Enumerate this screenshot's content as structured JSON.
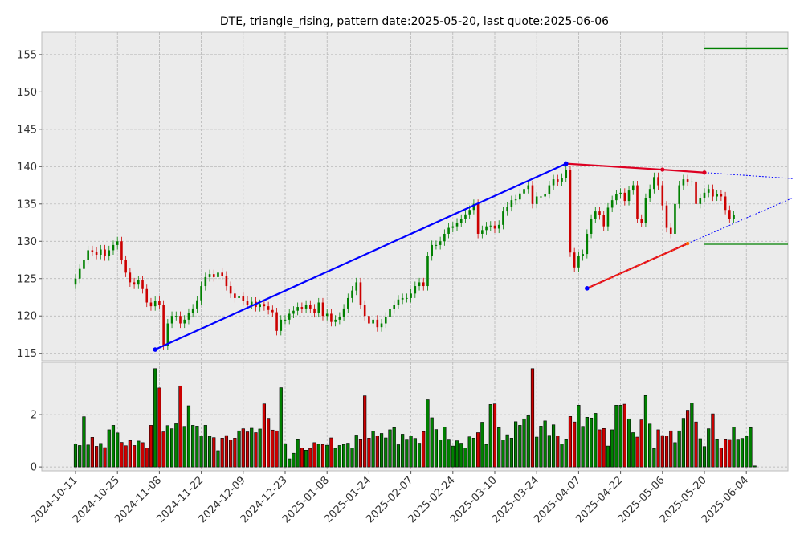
{
  "chart_data": {
    "title": "DTE, triangle_rising, pattern date:2025-05-20, last quote:2025-06-06",
    "type": "candlestick",
    "colors": {
      "up": "#008000",
      "down": "#cc0000",
      "panel_bg": "#ebebeb",
      "grid": "#b0b0b0",
      "upper_trend": "#dd0022",
      "lower_trend": "#ff6600",
      "swing_line": "#0000ff",
      "target_line": "#008000"
    },
    "price_axis": {
      "ylim": [
        114,
        158
      ],
      "ticks": [
        115,
        120,
        125,
        130,
        135,
        140,
        145,
        150,
        155
      ]
    },
    "volume_axis": {
      "ylim": [
        -0.15,
        4.0
      ],
      "ticks": [
        0,
        2
      ]
    },
    "x_tick_labels": [
      "2024-10-11",
      "2024-10-25",
      "2024-11-08",
      "2024-11-22",
      "2024-12-09",
      "2024-12-23",
      "2025-01-08",
      "2025-01-24",
      "2025-02-07",
      "2025-02-24",
      "2025-03-10",
      "2025-03-24",
      "2025-04-07",
      "2025-04-22",
      "2025-05-06",
      "2025-05-20",
      "2025-06-04"
    ],
    "x_tick_index": [
      0,
      10,
      20,
      30,
      40,
      50,
      60,
      70,
      80,
      90,
      100,
      110,
      120,
      130,
      140,
      150,
      160
    ],
    "n_days": 171,
    "closes": [
      125.0,
      126.3,
      127.5,
      128.8,
      128.6,
      128.2,
      128.9,
      128.0,
      128.8,
      129.5,
      130.0,
      127.5,
      125.8,
      124.5,
      124.2,
      124.8,
      123.6,
      121.8,
      121.3,
      122.0,
      121.5,
      116.0,
      119.0,
      120.0,
      120.0,
      119.0,
      119.5,
      120.4,
      121.0,
      122.1,
      124.0,
      125.2,
      125.6,
      125.2,
      125.8,
      125.4,
      124.0,
      123.0,
      122.4,
      122.6,
      122.0,
      121.5,
      121.9,
      121.2,
      121.6,
      121.3,
      120.8,
      120.5,
      118.0,
      119.5,
      119.5,
      120.3,
      120.7,
      121.2,
      121.0,
      121.5,
      121.0,
      120.4,
      121.8,
      120.0,
      120.3,
      119.2,
      119.5,
      119.9,
      121.0,
      122.4,
      123.4,
      124.5,
      121.5,
      120.0,
      119.0,
      119.5,
      118.5,
      119.0,
      119.9,
      120.9,
      121.5,
      122.2,
      122.4,
      122.4,
      123.0,
      124.0,
      124.5,
      124.0,
      128.0,
      129.5,
      129.5,
      130.0,
      131.0,
      131.8,
      132.0,
      132.5,
      133.0,
      133.6,
      134.2,
      135.0,
      131.0,
      131.5,
      132.0,
      132.1,
      131.7,
      132.2,
      134.0,
      134.6,
      135.5,
      135.6,
      136.4,
      137.0,
      137.5,
      135.0,
      136.0,
      136.0,
      136.3,
      137.5,
      138.3,
      138.0,
      138.5,
      139.5,
      128.5,
      126.5,
      128.0,
      128.3,
      131.0,
      133.0,
      134.0,
      133.5,
      132.0,
      134.5,
      135.5,
      136.3,
      136.5,
      135.4,
      136.8,
      137.5,
      133.0,
      132.5,
      135.8,
      137.0,
      138.6,
      137.5,
      134.8,
      131.8,
      131.0,
      135.0,
      137.5,
      138.3,
      138.0,
      138.0,
      135.0,
      135.8,
      136.5,
      137.0,
      136.0,
      136.3,
      136.0,
      134.2,
      133.0,
      133.5
    ],
    "volumes": [
      0.88,
      0.82,
      1.92,
      0.84,
      1.13,
      0.79,
      0.9,
      0.74,
      1.42,
      1.59,
      1.3,
      0.94,
      0.81,
      1.01,
      0.82,
      0.99,
      0.93,
      0.73,
      1.59,
      3.76,
      3.02,
      1.34,
      1.58,
      1.46,
      1.65,
      3.1,
      1.55,
      2.34,
      1.59,
      1.56,
      1.18,
      1.59,
      1.17,
      1.12,
      0.62,
      1.1,
      1.2,
      1.04,
      1.1,
      1.38,
      1.46,
      1.34,
      1.48,
      1.31,
      1.45,
      2.41,
      1.86,
      1.41,
      1.38,
      3.03,
      0.89,
      0.31,
      0.52,
      1.07,
      0.72,
      0.64,
      0.71,
      0.93,
      0.87,
      0.86,
      0.83,
      1.11,
      0.71,
      0.82,
      0.86,
      0.91,
      0.72,
      1.22,
      1.07,
      2.72,
      1.1,
      1.37,
      1.19,
      1.28,
      1.11,
      1.42,
      1.5,
      0.85,
      1.25,
      1.06,
      1.18,
      1.09,
      0.91,
      1.35,
      2.57,
      1.88,
      1.43,
      1.04,
      1.52,
      1.06,
      0.8,
      1.0,
      0.91,
      0.73,
      1.15,
      1.1,
      1.31,
      1.71,
      0.86,
      2.39,
      2.41,
      1.5,
      1.03,
      1.23,
      1.1,
      1.73,
      1.59,
      1.84,
      1.96,
      3.76,
      1.14,
      1.56,
      1.76,
      1.21,
      1.61,
      1.19,
      0.88,
      1.07,
      1.93,
      1.72,
      2.36,
      1.55,
      1.9,
      1.87,
      2.05,
      1.42,
      1.47,
      0.8,
      1.42,
      2.36,
      2.36,
      2.4,
      1.84,
      1.31,
      1.14,
      1.8,
      2.73,
      1.64,
      0.7,
      1.42,
      1.2,
      1.19,
      1.38,
      0.93,
      1.38,
      1.86,
      2.17,
      2.45,
      1.72,
      1.08,
      0.78,
      1.46,
      2.03,
      1.07,
      0.73,
      1.07,
      1.05,
      1.52,
      1.06,
      1.09,
      1.17,
      1.5,
      0.04
    ],
    "swing_line": {
      "from": [
        19,
        115.5
      ],
      "to": [
        117,
        140.4
      ]
    },
    "upper_trendline": {
      "points": [
        [
          117,
          140.4
        ],
        [
          140,
          139.6
        ],
        [
          150,
          139.2
        ]
      ],
      "extend_to": 171,
      "extend_value": 138.4
    },
    "lower_trendline": {
      "points": [
        [
          122,
          123.7
        ],
        [
          146,
          129.7
        ]
      ],
      "extend_to": 171,
      "extend_value": 135.8
    },
    "target_levels": [
      {
        "value": 155.8,
        "from": 150,
        "to": 171
      },
      {
        "value": 129.6,
        "from": 150,
        "to": 171
      }
    ]
  }
}
